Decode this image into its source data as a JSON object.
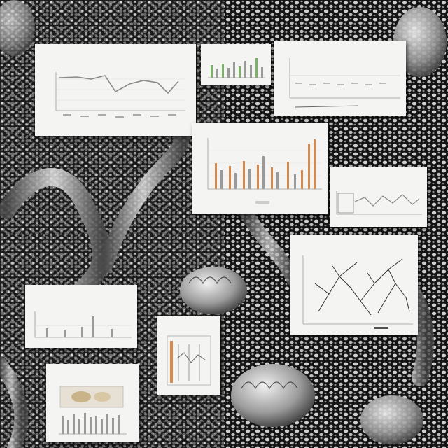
{
  "scene": {
    "description_colors": {
      "background_dark": "#141414",
      "texture_light": "#d8d8d8",
      "paper": "#f4f4f2",
      "bar_orange": "#d9894a",
      "bar_gray": "#9a9a9a",
      "accent_green": "#7fb069"
    },
    "card_titles": [
      "",
      "",
      "",
      "",
      "",
      "",
      "",
      ""
    ]
  }
}
